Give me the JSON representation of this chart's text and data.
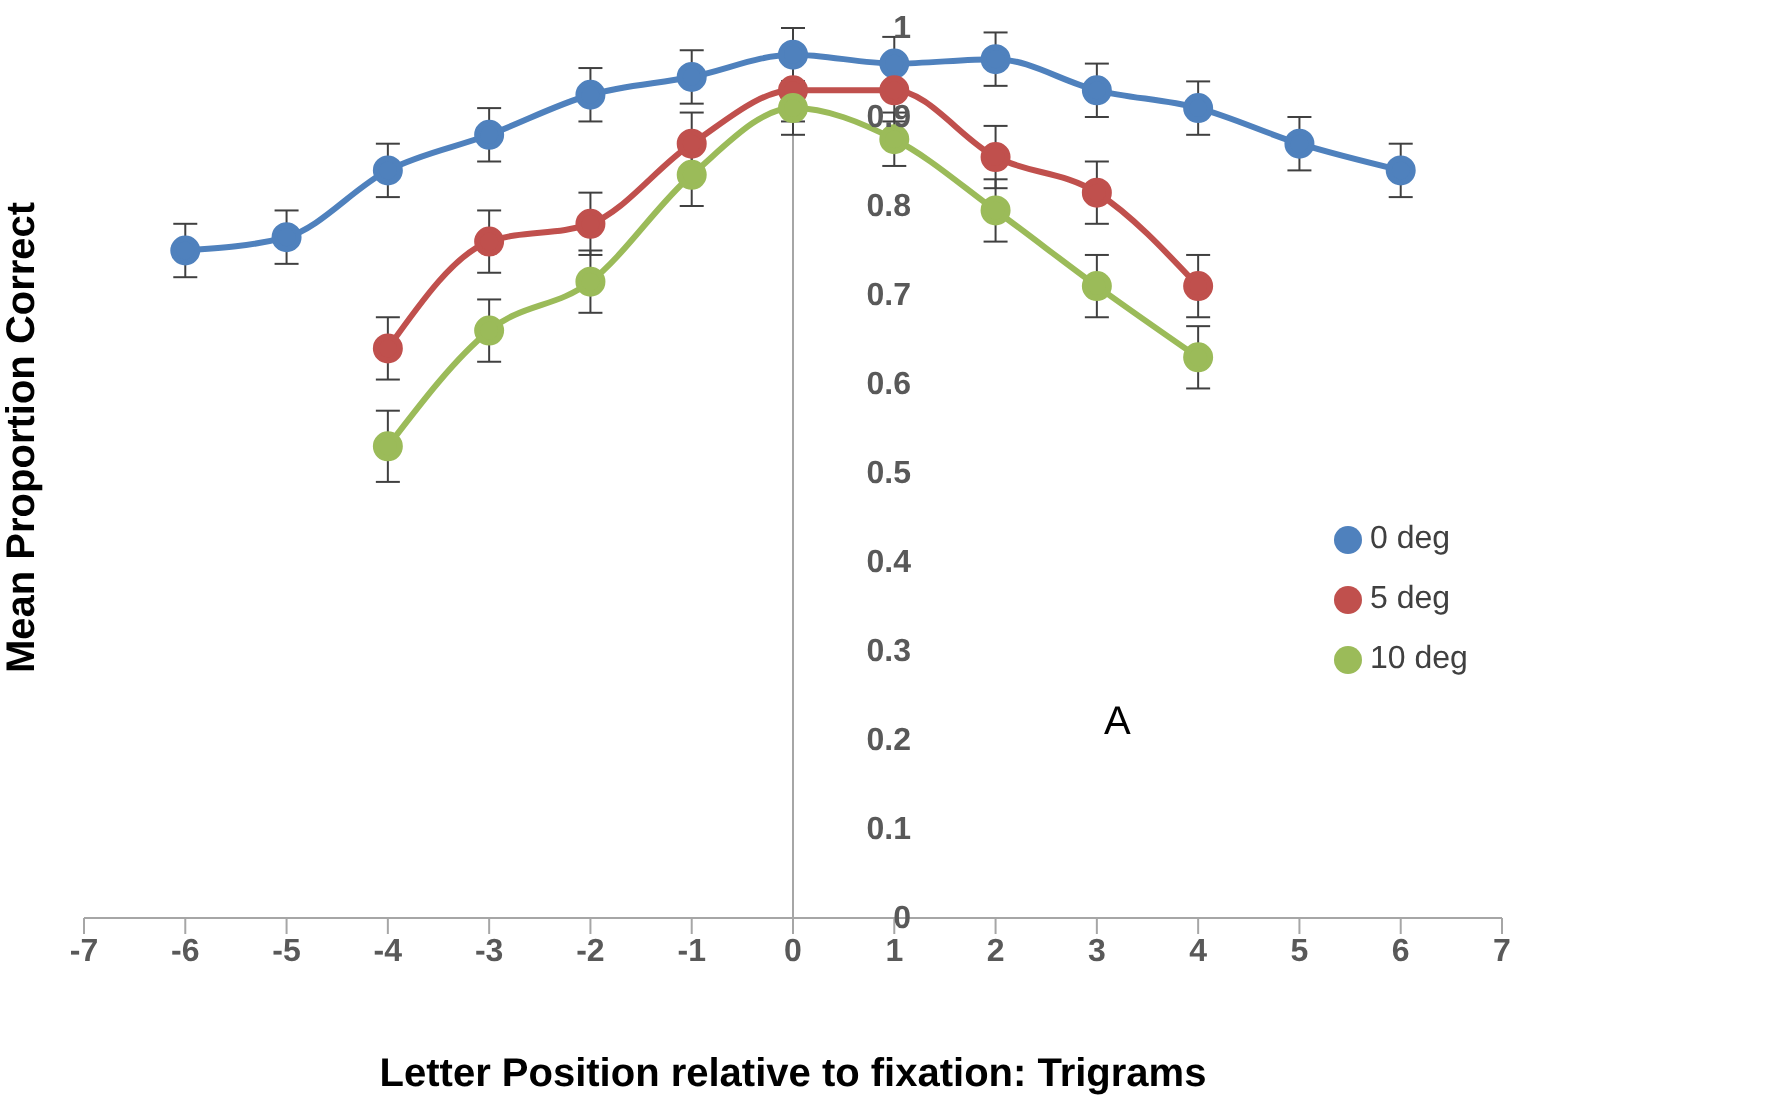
{
  "chart_data": {
    "type": "line",
    "xlabel": "Letter Position relative to fixation: Trigrams",
    "ylabel": "Mean Proportion Correct",
    "xlim": [
      -7,
      7
    ],
    "xticks": [
      -7,
      -6,
      -5,
      -4,
      -3,
      -2,
      -1,
      0,
      1,
      2,
      3,
      4,
      5,
      6,
      7
    ],
    "ylim": [
      0,
      1
    ],
    "yticks": [
      0,
      0.1,
      0.2,
      0.3,
      0.4,
      0.5,
      0.6,
      0.7,
      0.8,
      0.9,
      1
    ],
    "grid": false,
    "legend": "right",
    "marker": "circle",
    "annotations": [
      "A"
    ],
    "series": [
      {
        "name": "0 deg",
        "color": "#4f81bd",
        "x": [
          -6,
          -5,
          -4,
          -3,
          -2,
          -1,
          0,
          1,
          2,
          3,
          4,
          5,
          6
        ],
        "values": [
          0.75,
          0.765,
          0.84,
          0.88,
          0.925,
          0.945,
          0.97,
          0.96,
          0.965,
          0.93,
          0.91,
          0.87,
          0.84
        ],
        "errors": [
          0.03,
          0.03,
          0.03,
          0.03,
          0.03,
          0.03,
          0.03,
          0.03,
          0.03,
          0.03,
          0.03,
          0.03,
          0.03
        ]
      },
      {
        "name": "5 deg",
        "color": "#c0504d",
        "x": [
          -4,
          -3,
          -2,
          -1,
          0,
          1,
          2,
          3,
          4
        ],
        "values": [
          0.64,
          0.76,
          0.78,
          0.87,
          0.93,
          0.93,
          0.855,
          0.815,
          0.71
        ],
        "errors": [
          0.035,
          0.035,
          0.035,
          0.035,
          0.035,
          0.035,
          0.035,
          0.035,
          0.035
        ]
      },
      {
        "name": "10 deg",
        "color": "#9bbb59",
        "x": [
          -4,
          -3,
          -2,
          -1,
          0,
          1,
          2,
          3,
          4
        ],
        "values": [
          0.53,
          0.66,
          0.715,
          0.835,
          0.91,
          0.875,
          0.795,
          0.71,
          0.63
        ],
        "errors": [
          0.04,
          0.035,
          0.035,
          0.035,
          0.03,
          0.03,
          0.035,
          0.035,
          0.035
        ]
      }
    ]
  }
}
